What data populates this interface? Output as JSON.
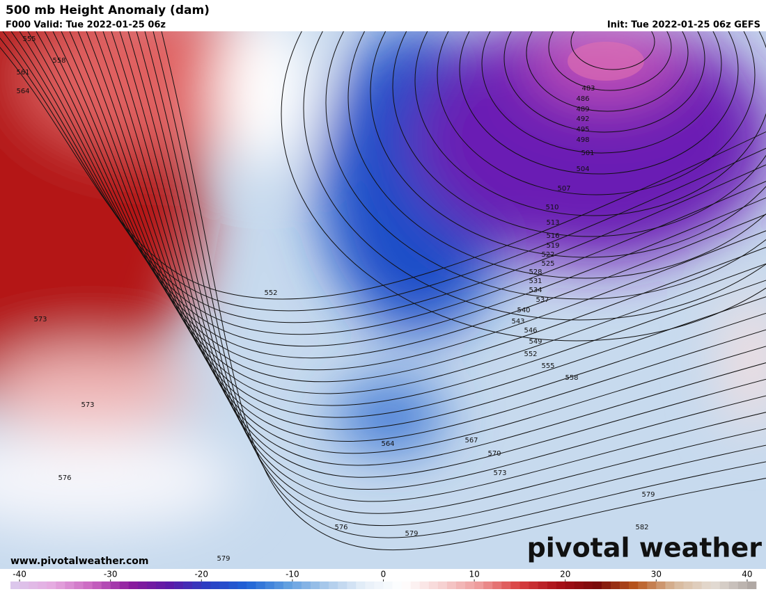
{
  "header": {
    "title": "500 mb Height Anomaly (dam)",
    "valid": "F000 Valid: Tue 2022-01-25 06z",
    "init": "Init: Tue 2022-01-25 06z GEFS"
  },
  "map": {
    "contour_labels": [
      555,
      558,
      561,
      564,
      573,
      573,
      576,
      579,
      552,
      564,
      567,
      570,
      573,
      576,
      579,
      579,
      582,
      555,
      558,
      552,
      549,
      546,
      543,
      540,
      537,
      534,
      531,
      528,
      525,
      522,
      519,
      516,
      513,
      510,
      507,
      504,
      501,
      498,
      495,
      492,
      489,
      486,
      483
    ],
    "website": "www.pivotalweather.com",
    "logo": "pivotal weather"
  },
  "colorbar": {
    "range": [
      -41,
      41
    ],
    "ticks": [
      -40,
      -30,
      -20,
      -10,
      0,
      10,
      20,
      30,
      40
    ],
    "colors": [
      "#dcc7ec",
      "#e6a9e0",
      "#c964c0",
      "#8a1a9c",
      "#5a1aa8",
      "#2a3fc4",
      "#1f63d6",
      "#5f9ee0",
      "#a8c8ea",
      "#e6eff8",
      "#ffffff",
      "#f6d2d2",
      "#ee9a9a",
      "#d94040",
      "#a80f18",
      "#7a0a0a",
      "#b8561c",
      "#d8b89a",
      "#e4dcd4",
      "#b0a8a4"
    ]
  }
}
